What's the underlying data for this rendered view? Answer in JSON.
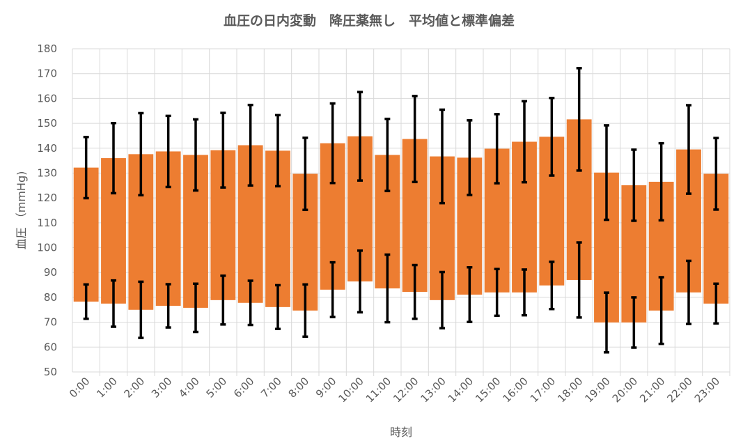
{
  "chart_data": {
    "type": "bar",
    "subtype": "floating-range-with-error-bars",
    "title": "血圧の日内変動　降圧薬無し　平均値と標準偏差",
    "xlabel": "時刻",
    "ylabel": "血圧 （mmHg)",
    "ylim": [
      50,
      180
    ],
    "yticks": [
      50,
      60,
      70,
      80,
      90,
      100,
      110,
      120,
      130,
      140,
      150,
      160,
      170,
      180
    ],
    "grid": true,
    "legend": "none",
    "bar_color": "#ED7D31",
    "error_bar_color": "#000000",
    "categories": [
      "0:00",
      "1:00",
      "2:00",
      "3:00",
      "4:00",
      "5:00",
      "6:00",
      "7:00",
      "8:00",
      "9:00",
      "10:00",
      "11:00",
      "12:00",
      "13:00",
      "14:00",
      "15:00",
      "16:00",
      "17:00",
      "18:00",
      "19:00",
      "20:00",
      "21:00",
      "22:00",
      "23:00"
    ],
    "systolic_mean": [
      132.2,
      136.0,
      137.6,
      138.7,
      137.3,
      139.2,
      141.2,
      139.0,
      129.7,
      142.0,
      144.8,
      137.3,
      143.7,
      136.7,
      136.2,
      139.8,
      142.6,
      144.6,
      151.6,
      130.2,
      125.1,
      126.5,
      139.5,
      129.7
    ],
    "systolic_sd": [
      12.3,
      14.1,
      16.5,
      14.3,
      14.3,
      15.0,
      16.2,
      14.3,
      14.5,
      16.0,
      17.8,
      14.5,
      17.3,
      18.8,
      15.0,
      13.9,
      16.3,
      15.6,
      20.6,
      19.0,
      14.3,
      15.5,
      17.8,
      14.4
    ],
    "diastolic_mean": [
      78.3,
      77.5,
      75.0,
      76.6,
      75.8,
      78.9,
      77.8,
      76.1,
      74.7,
      83.1,
      86.4,
      83.6,
      82.2,
      78.9,
      81.1,
      82.0,
      82.0,
      84.8,
      87.0,
      69.9,
      69.9,
      74.7,
      82.0,
      77.5
    ],
    "diastolic_sd": [
      6.9,
      9.3,
      11.3,
      8.7,
      9.7,
      9.8,
      8.9,
      8.8,
      10.5,
      11.0,
      12.4,
      13.6,
      10.8,
      11.3,
      11.0,
      9.4,
      9.2,
      9.5,
      15.1,
      12.0,
      10.1,
      13.4,
      12.7,
      8.0
    ]
  }
}
